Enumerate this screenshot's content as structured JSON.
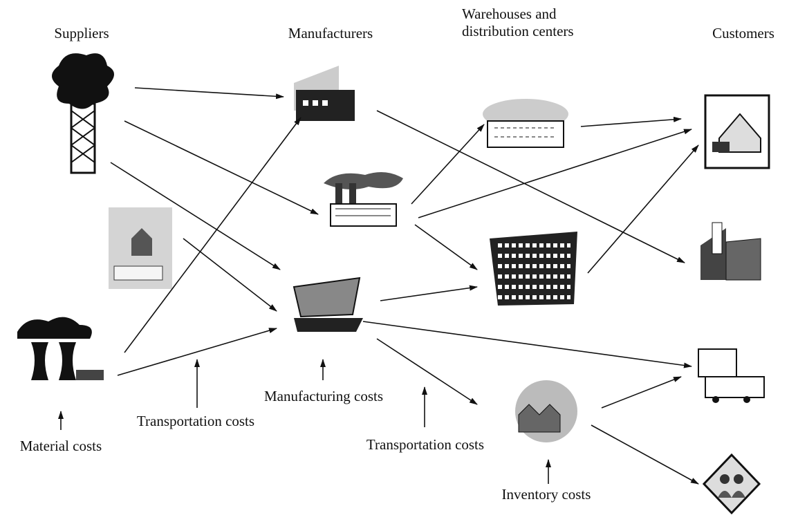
{
  "columns": [
    {
      "title": [
        "Suppliers"
      ]
    },
    {
      "title": [
        "Manufacturers"
      ]
    },
    {
      "title": [
        "Warehouses and",
        "distribution centers"
      ]
    },
    {
      "title": [
        "Customers"
      ]
    }
  ],
  "costs": [
    "Material costs",
    "Transportation costs",
    "Manufacturing costs",
    "Transportation costs",
    "Inventory costs"
  ]
}
